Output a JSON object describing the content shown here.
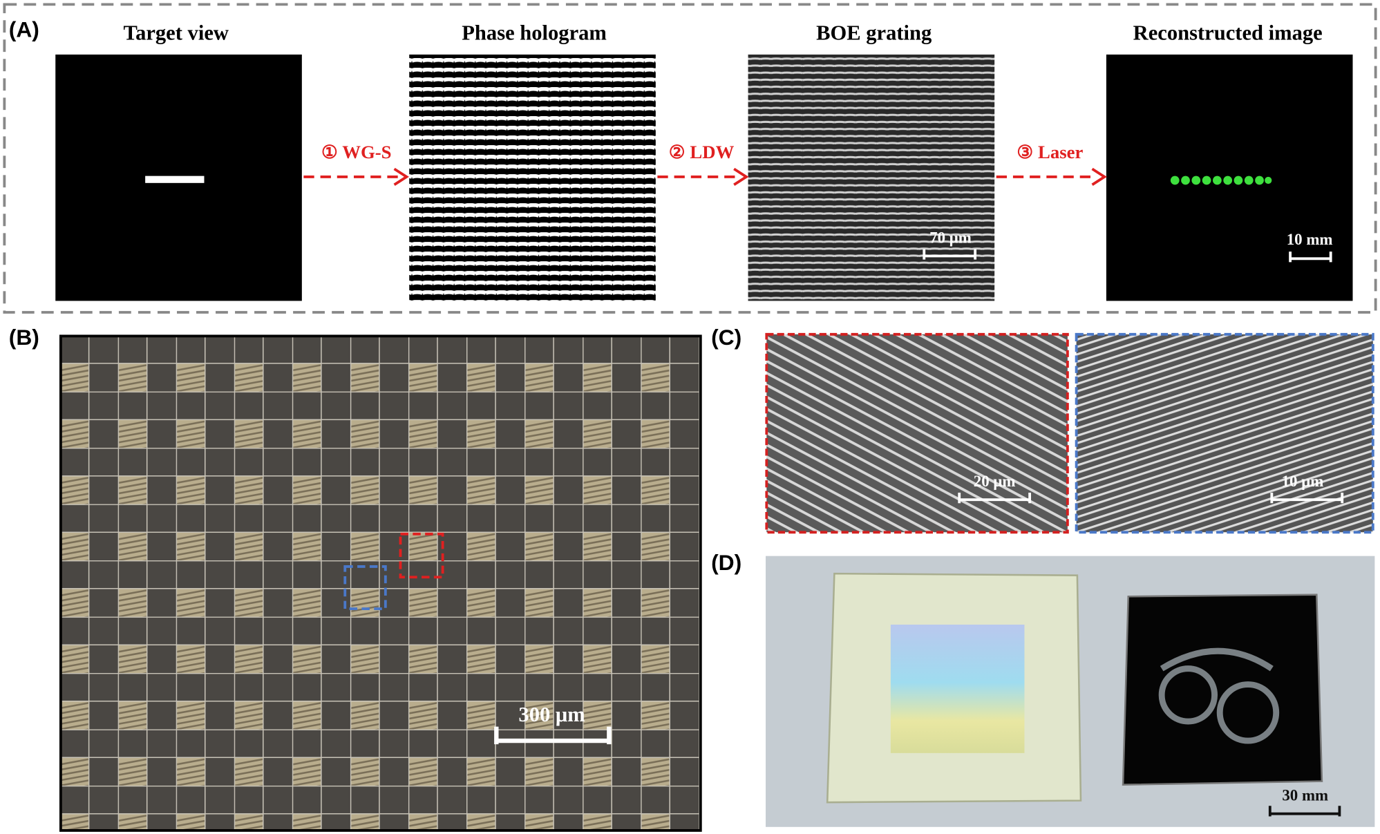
{
  "panel_a": {
    "label": "(A)",
    "titles": [
      "Target view",
      "Phase hologram",
      "BOE grating",
      "Reconstructed image"
    ],
    "steps": [
      "① WG-S",
      "② LDW",
      "③ Laser"
    ],
    "scale_bars": [
      "70 μm",
      "10 mm"
    ]
  },
  "panel_b": {
    "label": "(B)",
    "scale_bar": "300 μm"
  },
  "panel_c": {
    "label": "(C)",
    "scale_bars": [
      "20 μm",
      "10 μm"
    ]
  },
  "panel_d": {
    "label": "(D)",
    "scale_bar": "30 mm"
  }
}
